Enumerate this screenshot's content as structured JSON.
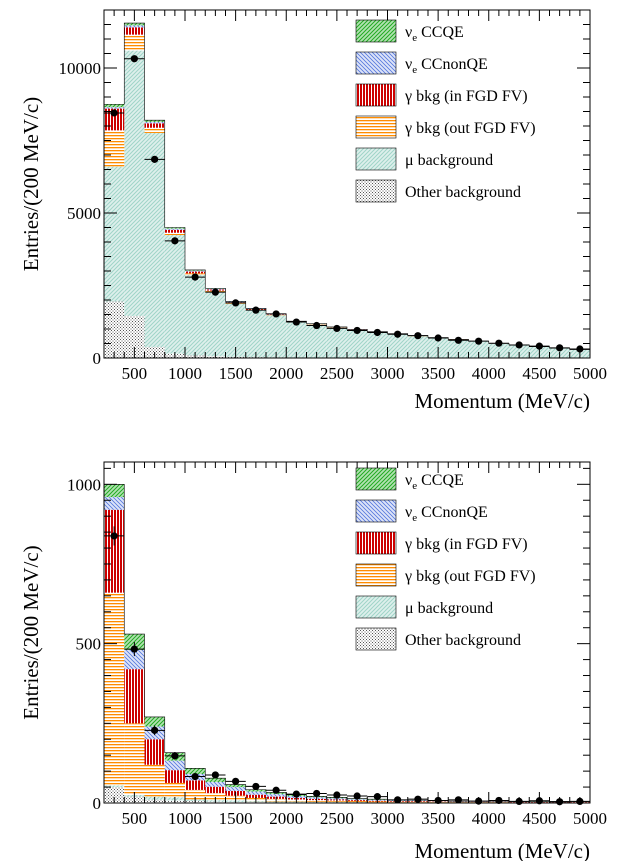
{
  "chart_data": [
    {
      "type": "bar",
      "stacked": true,
      "xlabel": "Momentum (MeV/c)",
      "ylabel": "Entries/(200 MeV/c)",
      "xlim": [
        200,
        5000
      ],
      "ylim": [
        0,
        12000
      ],
      "xticks": [
        500,
        1000,
        1500,
        2000,
        2500,
        3000,
        3500,
        4000,
        4500,
        5000
      ],
      "yticks": [
        0,
        5000,
        10000
      ],
      "legend_position": "top-right",
      "bin_edges": [
        200,
        400,
        600,
        800,
        1000,
        1200,
        1400,
        1600,
        1800,
        2000,
        2200,
        2400,
        2600,
        2800,
        3000,
        3200,
        3400,
        3600,
        3800,
        4000,
        4200,
        4400,
        4600,
        4800,
        5000
      ],
      "series": [
        {
          "name": "Other background",
          "color": "#555555",
          "pattern": "dots",
          "values": [
            1950,
            1450,
            380,
            150,
            90,
            60,
            40,
            30,
            25,
            20,
            18,
            15,
            12,
            10,
            9,
            8,
            7,
            6,
            5,
            5,
            4,
            4,
            3,
            3
          ]
        },
        {
          "name": "μ background",
          "color": "#9fd4c8",
          "pattern": "diag",
          "values": [
            4650,
            9150,
            7380,
            4090,
            2780,
            2230,
            1830,
            1620,
            1450,
            1210,
            1140,
            1030,
            955,
            880,
            815,
            745,
            685,
            625,
            565,
            490,
            440,
            380,
            330,
            280
          ]
        },
        {
          "name": "γ bkg (out FGD FV)",
          "color": "#ff8c00",
          "pattern": "hlines",
          "values": [
            1250,
            550,
            180,
            80,
            50,
            35,
            25,
            20,
            15,
            12,
            10,
            8,
            7,
            6,
            5,
            5,
            4,
            4,
            3,
            3,
            3,
            2,
            2,
            2
          ]
        },
        {
          "name": "γ bkg (in FGD FV)",
          "color": "#cc0000",
          "pattern": "vlines",
          "values": [
            750,
            250,
            150,
            100,
            60,
            40,
            30,
            20,
            15,
            12,
            10,
            8,
            6,
            5,
            4,
            4,
            3,
            3,
            3,
            2,
            2,
            2,
            2,
            2
          ]
        },
        {
          "name": "νe CCnonQE",
          "color": "#5577dd",
          "pattern": "diag2",
          "values": [
            50,
            70,
            50,
            40,
            30,
            25,
            20,
            15,
            12,
            10,
            8,
            7,
            6,
            5,
            4,
            4,
            3,
            3,
            3,
            2,
            2,
            2,
            2,
            2
          ]
        },
        {
          "name": "νe CCQE",
          "color": "#22aa22",
          "pattern": "diag",
          "values": [
            100,
            80,
            60,
            40,
            25,
            15,
            10,
            8,
            6,
            5,
            4,
            4,
            3,
            3,
            3,
            2,
            2,
            2,
            2,
            2,
            1,
            1,
            1,
            1
          ]
        }
      ],
      "data_points": [
        8450,
        10320,
        6850,
        4040,
        2790,
        2270,
        1900,
        1650,
        1520,
        1240,
        1120,
        1020,
        950,
        880,
        820,
        770,
        690,
        610,
        580,
        510,
        450,
        410,
        350,
        310
      ]
    },
    {
      "type": "bar",
      "stacked": true,
      "xlabel": "Momentum (MeV/c)",
      "ylabel": "Entries/(200 MeV/c)",
      "xlim": [
        200,
        5000
      ],
      "ylim": [
        0,
        1070
      ],
      "xticks": [
        500,
        1000,
        1500,
        2000,
        2500,
        3000,
        3500,
        4000,
        4500,
        5000
      ],
      "yticks": [
        0,
        500,
        1000
      ],
      "legend_position": "top-right",
      "bin_edges": [
        200,
        400,
        600,
        800,
        1000,
        1200,
        1400,
        1600,
        1800,
        2000,
        2200,
        2400,
        2600,
        2800,
        3000,
        3200,
        3400,
        3600,
        3800,
        4000,
        4200,
        4400,
        4600,
        4800,
        5000
      ],
      "series": [
        {
          "name": "Other background",
          "color": "#555555",
          "pattern": "dots",
          "values": [
            50,
            20,
            10,
            8,
            6,
            4,
            3,
            3,
            2,
            2,
            2,
            2,
            1,
            1,
            1,
            1,
            1,
            1,
            1,
            1,
            1,
            1,
            1,
            1
          ]
        },
        {
          "name": "μ background",
          "color": "#9fd4c8",
          "pattern": "diag",
          "values": [
            5,
            5,
            10,
            10,
            5,
            5,
            5,
            3,
            3,
            3,
            2,
            2,
            2,
            1,
            1,
            1,
            1,
            1,
            1,
            1,
            0,
            0,
            0,
            0
          ]
        },
        {
          "name": "γ bkg (out FGD FV)",
          "color": "#ff8c00",
          "pattern": "hlines",
          "values": [
            605,
            225,
            100,
            45,
            30,
            22,
            15,
            10,
            8,
            6,
            5,
            4,
            3,
            3,
            2,
            2,
            2,
            1,
            1,
            1,
            1,
            1,
            1,
            1
          ]
        },
        {
          "name": "γ bkg (in FGD FV)",
          "color": "#cc0000",
          "pattern": "vlines",
          "values": [
            260,
            170,
            80,
            40,
            30,
            20,
            15,
            10,
            7,
            5,
            4,
            3,
            3,
            2,
            2,
            2,
            1,
            1,
            1,
            1,
            1,
            1,
            1,
            1
          ]
        },
        {
          "name": "νe CCnonQE",
          "color": "#5577dd",
          "pattern": "diag2",
          "values": [
            40,
            60,
            40,
            30,
            20,
            15,
            12,
            10,
            8,
            6,
            5,
            4,
            3,
            3,
            2,
            2,
            2,
            1,
            1,
            1,
            1,
            1,
            1,
            1
          ]
        },
        {
          "name": "νe CCQE",
          "color": "#22aa22",
          "pattern": "diag",
          "values": [
            40,
            50,
            30,
            25,
            18,
            12,
            8,
            6,
            5,
            4,
            3,
            3,
            2,
            2,
            2,
            1,
            1,
            1,
            1,
            1,
            1,
            1,
            1,
            1
          ]
        }
      ],
      "data_points": [
        838,
        483,
        228,
        148,
        83,
        88,
        68,
        52,
        40,
        28,
        30,
        25,
        22,
        20,
        10,
        12,
        8,
        10,
        6,
        8,
        5,
        7,
        4,
        5
      ],
      "data_errors": [
        30,
        22,
        15,
        12,
        9,
        9,
        8,
        7,
        6,
        5,
        5,
        5,
        5,
        4,
        3,
        3,
        3,
        3,
        2,
        3,
        2,
        3,
        2,
        2
      ]
    }
  ],
  "legend": {
    "items": [
      {
        "label": "νe CCQE",
        "sym": "ν",
        "sub": "e",
        "rest": " CCQE",
        "color": "#22aa22",
        "pattern": "diag"
      },
      {
        "label": "νe CCnonQE",
        "sym": "ν",
        "sub": "e",
        "rest": " CCnonQE",
        "color": "#5577dd",
        "pattern": "diag2"
      },
      {
        "label": "γ bkg (in FGD FV)",
        "sym": "",
        "sub": "",
        "rest": "γ bkg (in FGD FV)",
        "color": "#cc0000",
        "pattern": "vlines"
      },
      {
        "label": "γ bkg (out FGD FV)",
        "sym": "",
        "sub": "",
        "rest": "γ bkg (out FGD FV)",
        "color": "#ff8c00",
        "pattern": "hlines"
      },
      {
        "label": "μ background",
        "sym": "",
        "sub": "",
        "rest": "μ background",
        "color": "#9fd4c8",
        "pattern": "diag"
      },
      {
        "label": "Other background",
        "sym": "",
        "sub": "",
        "rest": "Other background",
        "color": "#555555",
        "pattern": "dots"
      }
    ]
  }
}
